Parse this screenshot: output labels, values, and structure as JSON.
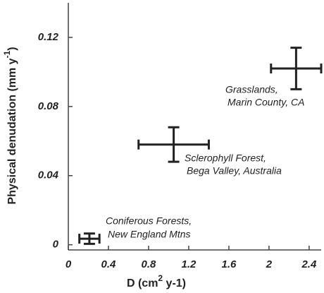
{
  "chart_data": {
    "type": "scatter",
    "xlabel": [
      "D (cm",
      "2",
      " y-1)"
    ],
    "ylabel": [
      "Physical denudation (mm y",
      "-1",
      ")"
    ],
    "series": [
      {
        "name": null,
        "color": "#222222",
        "x": [
          0.21,
          1.05,
          2.27
        ],
        "values": [
          0.0035,
          0.058,
          0.102
        ],
        "xerr": [
          0.1,
          0.35,
          0.25
        ],
        "yerr": [
          0.003,
          0.01,
          0.012
        ]
      }
    ],
    "annotations": [
      [
        "Coniferous Forests,",
        "New England Mtns"
      ],
      [
        "Sclerophyll Forest,",
        "Bega Valley, Australia"
      ],
      [
        "Grasslands,",
        "Marin County, CA"
      ]
    ],
    "xlim": [
      0,
      2.52
    ],
    "ylim": [
      -0.003,
      0.14
    ],
    "xticks": [
      0,
      0.4,
      0.8,
      1.2,
      1.6,
      2,
      2.4
    ],
    "yticks": [
      0,
      0.04,
      0.08,
      0.12
    ]
  }
}
